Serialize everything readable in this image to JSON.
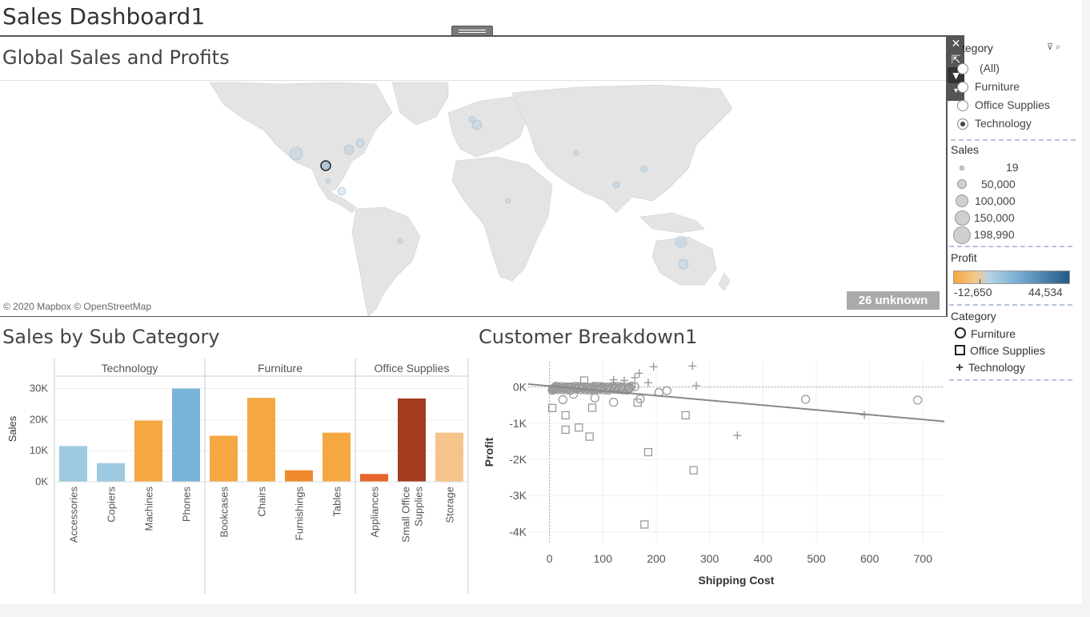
{
  "dashboard": {
    "title": "Sales Dashboard1"
  },
  "map": {
    "title": "Global Sales and Profits",
    "credit": "© 2020 Mapbox © OpenStreetMap",
    "unknown_label": "26 unknown",
    "selected_mark_color": "#a9c6dd"
  },
  "toolbar": {
    "icons": [
      "close-icon",
      "popout-icon",
      "filter-icon",
      "more-options-icon"
    ]
  },
  "category_filter": {
    "title": "tegory",
    "options": [
      {
        "label": "(All)",
        "selected": false
      },
      {
        "label": "Furniture",
        "selected": false
      },
      {
        "label": "Office Supplies",
        "selected": false
      },
      {
        "label": "Technology",
        "selected": true
      }
    ]
  },
  "sales_legend": {
    "title": "Sales",
    "items": [
      "19",
      "50,000",
      "100,000",
      "150,000",
      "198,990"
    ]
  },
  "profit_legend": {
    "title": "Profit",
    "min_label": "-12,650",
    "max_label": "44,534"
  },
  "category_legend": {
    "title": "Category",
    "items": [
      {
        "label": "Furniture",
        "shape": "circle"
      },
      {
        "label": "Office Supplies",
        "shape": "square"
      },
      {
        "label": "Technology",
        "shape": "plus"
      }
    ]
  },
  "bar_chart": {
    "title": "Sales by Sub Category",
    "chart_data": {
      "type": "bar",
      "ylabel": "Sales",
      "yticks": [
        "0K",
        "10K",
        "20K",
        "30K"
      ],
      "ylim": [
        0,
        34000
      ],
      "groups": [
        {
          "name": "Technology",
          "categories": [
            "Accessories",
            "Copiers",
            "Machines",
            "Phones"
          ],
          "values": [
            11500,
            6000,
            19700,
            30000
          ],
          "colors": [
            "#9ecae1",
            "#9ecae1",
            "#f5a742",
            "#7ab3d8"
          ]
        },
        {
          "name": "Furniture",
          "categories": [
            "Bookcases",
            "Chairs",
            "Furnishings",
            "Tables"
          ],
          "values": [
            14800,
            27000,
            3700,
            15800
          ],
          "colors": [
            "#f5a742",
            "#f5a742",
            "#f08a2e",
            "#f5a742"
          ]
        },
        {
          "name": "Office Supplies",
          "categories": [
            "Appliances",
            "Small Office Supplies",
            "Storage"
          ],
          "values": [
            2500,
            26800,
            15800
          ],
          "colors": [
            "#e8652c",
            "#a33b1f",
            "#f4c48b"
          ]
        }
      ]
    }
  },
  "scatter": {
    "title": "Customer Breakdown1",
    "chart_data": {
      "type": "scatter",
      "xlabel": "Shipping Cost",
      "ylabel": "Profit",
      "xticks": [
        "0",
        "100",
        "200",
        "300",
        "400",
        "500",
        "600",
        "700"
      ],
      "yticks": [
        "0K",
        "-1K",
        "-2K",
        "-3K",
        "-4K"
      ],
      "xlim": [
        -40,
        740
      ],
      "ylim": [
        -4300,
        700
      ],
      "trend": {
        "x": [
          -40,
          740
        ],
        "y": [
          80,
          -950
        ]
      },
      "points": [
        {
          "x": 10,
          "y": -50,
          "s": "circle"
        },
        {
          "x": 20,
          "y": -30,
          "s": "circle"
        },
        {
          "x": 30,
          "y": -20,
          "s": "circle"
        },
        {
          "x": 40,
          "y": -10,
          "s": "circle"
        },
        {
          "x": 50,
          "y": -40,
          "s": "circle"
        },
        {
          "x": 60,
          "y": -20,
          "s": "circle"
        },
        {
          "x": 70,
          "y": 0,
          "s": "circle"
        },
        {
          "x": 80,
          "y": -30,
          "s": "circle"
        },
        {
          "x": 90,
          "y": -60,
          "s": "circle"
        },
        {
          "x": 100,
          "y": -20,
          "s": "circle"
        },
        {
          "x": 110,
          "y": -10,
          "s": "circle"
        },
        {
          "x": 120,
          "y": -40,
          "s": "circle"
        },
        {
          "x": 135,
          "y": -10,
          "s": "circle"
        },
        {
          "x": 150,
          "y": -30,
          "s": "circle"
        },
        {
          "x": 160,
          "y": 10,
          "s": "circle"
        },
        {
          "x": 25,
          "y": -350,
          "s": "circle"
        },
        {
          "x": 45,
          "y": -200,
          "s": "circle"
        },
        {
          "x": 85,
          "y": -300,
          "s": "circle"
        },
        {
          "x": 120,
          "y": -420,
          "s": "circle"
        },
        {
          "x": 170,
          "y": -330,
          "s": "circle"
        },
        {
          "x": 205,
          "y": -150,
          "s": "circle"
        },
        {
          "x": 220,
          "y": -100,
          "s": "circle"
        },
        {
          "x": 480,
          "y": -340,
          "s": "circle"
        },
        {
          "x": 690,
          "y": -360,
          "s": "circle"
        },
        {
          "x": 15,
          "y": -30,
          "s": "square"
        },
        {
          "x": 35,
          "y": 10,
          "s": "square"
        },
        {
          "x": 65,
          "y": 180,
          "s": "square"
        },
        {
          "x": 5,
          "y": -580,
          "s": "square"
        },
        {
          "x": 30,
          "y": -780,
          "s": "square"
        },
        {
          "x": 30,
          "y": -1180,
          "s": "square"
        },
        {
          "x": 55,
          "y": -1120,
          "s": "square"
        },
        {
          "x": 75,
          "y": -1370,
          "s": "square"
        },
        {
          "x": 80,
          "y": -570,
          "s": "square"
        },
        {
          "x": 165,
          "y": -430,
          "s": "square"
        },
        {
          "x": 185,
          "y": -1800,
          "s": "square"
        },
        {
          "x": 255,
          "y": -780,
          "s": "square"
        },
        {
          "x": 270,
          "y": -2300,
          "s": "square"
        },
        {
          "x": 178,
          "y": -3800,
          "s": "square"
        },
        {
          "x": 90,
          "y": 20,
          "s": "square"
        },
        {
          "x": 120,
          "y": 200,
          "s": "plus"
        },
        {
          "x": 140,
          "y": 180,
          "s": "plus"
        },
        {
          "x": 160,
          "y": 260,
          "s": "plus"
        },
        {
          "x": 168,
          "y": 380,
          "s": "plus"
        },
        {
          "x": 185,
          "y": 120,
          "s": "plus"
        },
        {
          "x": 195,
          "y": 560,
          "s": "plus"
        },
        {
          "x": 268,
          "y": 580,
          "s": "plus"
        },
        {
          "x": 275,
          "y": 40,
          "s": "plus"
        },
        {
          "x": 352,
          "y": -1340,
          "s": "plus"
        },
        {
          "x": 590,
          "y": -770,
          "s": "plus"
        }
      ]
    }
  }
}
